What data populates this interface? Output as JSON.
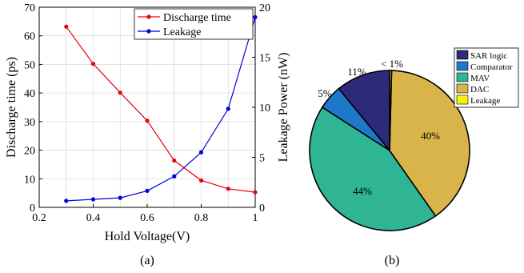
{
  "chart_data": [
    {
      "type": "line",
      "caption": "(a)",
      "xlabel": "Hold Voltage(V)",
      "ylabel_left": "Discharge time (ps)",
      "ylabel_right": "Leakage Power (nW)",
      "xlim": [
        0.2,
        1
      ],
      "ylim_left": [
        0,
        70
      ],
      "ylim_right": [
        0,
        20
      ],
      "x_ticks": [
        "0.2",
        "0.4",
        "0.6",
        "0.8",
        "1"
      ],
      "y_ticks_left": [
        "0",
        "10",
        "20",
        "30",
        "40",
        "50",
        "60",
        "70"
      ],
      "y_ticks_right": [
        "0",
        "5",
        "10",
        "15",
        "20"
      ],
      "grid": true,
      "legend_position": "top-right",
      "x": [
        0.3,
        0.4,
        0.5,
        0.6,
        0.7,
        0.8,
        0.9,
        1.0
      ],
      "series": [
        {
          "name": "Discharge time",
          "axis": "left",
          "color": "#e8000b",
          "values": [
            63.2,
            50.2,
            40.1,
            30.3,
            16.4,
            9.4,
            6.5,
            5.3
          ]
        },
        {
          "name": "Leakage",
          "axis": "right",
          "color": "#0000e0",
          "values": [
            0.65,
            0.8,
            0.95,
            1.65,
            3.1,
            5.5,
            9.85,
            19.0
          ]
        }
      ]
    },
    {
      "type": "pie",
      "caption": "(b)",
      "legend_position": "top-right",
      "slices": [
        {
          "label": "SAR logic",
          "value": 11,
          "pct_label": "11%",
          "color": "#2e2a7a"
        },
        {
          "label": "Comparator",
          "value": 5,
          "pct_label": "5%",
          "color": "#1e78c8"
        },
        {
          "label": "MAV",
          "value": 44,
          "pct_label": "44%",
          "color": "#2fb494"
        },
        {
          "label": "DAC",
          "value": 40,
          "pct_label": "40%",
          "color": "#d9b44a"
        },
        {
          "label": "Leakage",
          "value": 0.4,
          "pct_label": "< 1%",
          "color": "#f4f20a"
        }
      ]
    }
  ]
}
